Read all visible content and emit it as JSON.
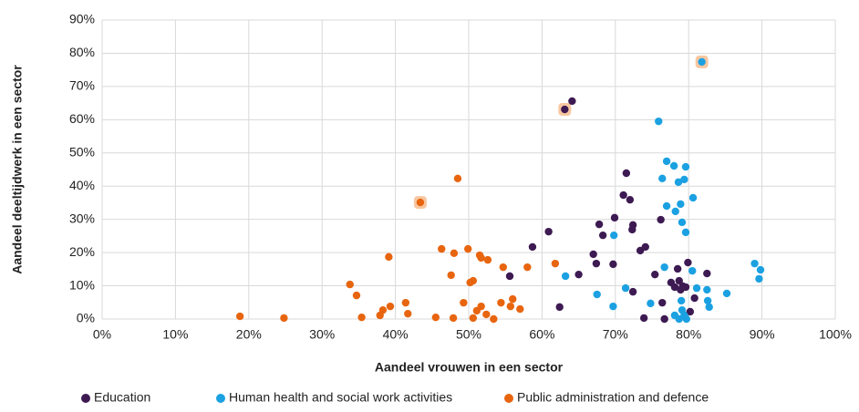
{
  "chart_data": {
    "type": "scatter",
    "xlabel": "Aandeel vrouwen in een sector",
    "ylabel": "Aandeel deeltijdwerk in een sector",
    "xlim": [
      0,
      100
    ],
    "ylim": [
      0,
      90
    ],
    "xticks": [
      {
        "value": 0,
        "label": "0%"
      },
      {
        "value": 10,
        "label": "10%"
      },
      {
        "value": 20,
        "label": "20%"
      },
      {
        "value": 30,
        "label": "30%"
      },
      {
        "value": 40,
        "label": "40%"
      },
      {
        "value": 50,
        "label": "50%"
      },
      {
        "value": 60,
        "label": "60%"
      },
      {
        "value": 70,
        "label": "70%"
      },
      {
        "value": 80,
        "label": "80%"
      },
      {
        "value": 90,
        "label": "90%"
      },
      {
        "value": 100,
        "label": "100%"
      }
    ],
    "yticks": [
      {
        "value": 0,
        "label": "0%"
      },
      {
        "value": 10,
        "label": "10%"
      },
      {
        "value": 20,
        "label": "20%"
      },
      {
        "value": 30,
        "label": "30%"
      },
      {
        "value": 40,
        "label": "40%"
      },
      {
        "value": 50,
        "label": "50%"
      },
      {
        "value": 60,
        "label": "60%"
      },
      {
        "value": 70,
        "label": "70%"
      },
      {
        "value": 80,
        "label": "80%"
      },
      {
        "value": 90,
        "label": "90%"
      }
    ],
    "grid": true,
    "legend": "bottom",
    "series": [
      {
        "name": "Education",
        "color": "#3d1a52",
        "highlight": [
          0
        ],
        "x": [
          63.1,
          64.1,
          58.7,
          60.9,
          55.6,
          62.4,
          65.0,
          67.0,
          67.4,
          67.8,
          68.3,
          69.7,
          69.9,
          71.1,
          71.5,
          72.0,
          72.3,
          72.4,
          72.4,
          73.4,
          74.1,
          73.9,
          75.4,
          76.2,
          76.4,
          76.7,
          77.6,
          78.1,
          78.5,
          78.7,
          78.9,
          79.2,
          79.6,
          79.9,
          80.2,
          80.8,
          82.5
        ],
        "values": [
          63.1,
          65.6,
          21.7,
          26.3,
          12.9,
          3.6,
          13.4,
          19.5,
          16.7,
          28.5,
          25.2,
          16.5,
          30.5,
          37.3,
          43.9,
          35.9,
          26.9,
          28.3,
          8.2,
          20.6,
          21.7,
          0.3,
          13.4,
          29.9,
          4.9,
          0,
          11.0,
          9.6,
          15.1,
          11.5,
          8.8,
          9.9,
          9.6,
          17.0,
          2.2,
          6.3,
          13.7
        ]
      },
      {
        "name": "Human health and social work activities",
        "color": "#1ba1e2",
        "highlight": [
          0
        ],
        "x": [
          81.8,
          75.9,
          77.0,
          78.0,
          79.6,
          76.4,
          79.4,
          78.6,
          80.6,
          77.0,
          78.9,
          78.2,
          79.1,
          79.6,
          69.8,
          76.7,
          80.5,
          89.0,
          89.8,
          89.6,
          63.2,
          71.4,
          67.5,
          81.1,
          82.5,
          74.8,
          82.6,
          82.8,
          79.0,
          79.1,
          79.4,
          78.1,
          78.7,
          79.7,
          85.2,
          69.7
        ],
        "values": [
          77.4,
          59.5,
          47.5,
          46.1,
          45.8,
          42.3,
          42.0,
          41.2,
          36.5,
          34.0,
          34.6,
          32.4,
          29.1,
          26.1,
          25.2,
          15.6,
          14.5,
          16.7,
          14.8,
          12.1,
          12.9,
          9.3,
          7.4,
          9.3,
          8.8,
          4.7,
          5.5,
          3.6,
          5.5,
          2.7,
          1.1,
          1.1,
          0,
          0,
          7.7,
          3.8
        ]
      },
      {
        "name": "Public administration and defence",
        "color": "#e8650f",
        "highlight": [
          0
        ],
        "x": [
          43.4,
          48.5,
          18.8,
          24.8,
          33.8,
          34.7,
          35.4,
          39.1,
          39.3,
          37.9,
          38.3,
          41.4,
          41.7,
          45.5,
          46.3,
          47.6,
          48.0,
          47.9,
          49.3,
          49.9,
          50.6,
          50.2,
          50.6,
          51.1,
          51.5,
          51.7,
          52.4,
          51.7,
          52.6,
          53.4,
          54.4,
          54.7,
          55.7,
          56.0,
          57.0,
          58.0,
          61.8
        ],
        "values": [
          35.1,
          42.3,
          0.8,
          0.3,
          10.4,
          7.1,
          0.5,
          18.7,
          3.8,
          1.1,
          2.7,
          4.9,
          1.6,
          0.5,
          21.1,
          13.2,
          19.8,
          0.3,
          4.9,
          21.1,
          11.5,
          11.0,
          0.3,
          2.5,
          19.2,
          18.4,
          1.4,
          3.8,
          17.8,
          0,
          4.9,
          15.6,
          3.8,
          6.0,
          3.0,
          15.6,
          16.7
        ]
      }
    ]
  }
}
